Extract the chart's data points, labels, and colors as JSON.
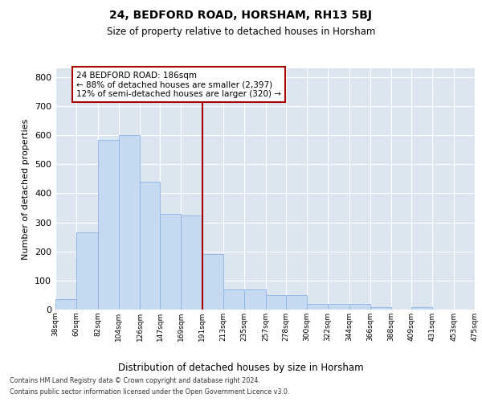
{
  "title1": "24, BEDFORD ROAD, HORSHAM, RH13 5BJ",
  "title2": "Size of property relative to detached houses in Horsham",
  "xlabel": "Distribution of detached houses by size in Horsham",
  "ylabel": "Number of detached properties",
  "footnote1": "Contains HM Land Registry data © Crown copyright and database right 2024.",
  "footnote2": "Contains public sector information licensed under the Open Government Licence v3.0.",
  "property_label": "24 BEDFORD ROAD: 186sqm",
  "annotation_line1": "← 88% of detached houses are smaller (2,397)",
  "annotation_line2": "12% of semi-detached houses are larger (320) →",
  "bar_color": "#C5D9F1",
  "bar_edge_color": "#8EB4E3",
  "highlight_color": "#AA0000",
  "background_color": "#DCE6F1",
  "bins": [
    38,
    60,
    82,
    104,
    126,
    147,
    169,
    191,
    213,
    235,
    257,
    278,
    300,
    322,
    344,
    366,
    388,
    409,
    431,
    453,
    475
  ],
  "values": [
    35,
    265,
    585,
    600,
    440,
    330,
    325,
    190,
    70,
    70,
    50,
    50,
    20,
    20,
    20,
    8,
    0,
    8,
    0,
    0,
    8
  ],
  "ylim": [
    0,
    830
  ],
  "yticks": [
    0,
    100,
    200,
    300,
    400,
    500,
    600,
    700,
    800
  ],
  "vline_x": 191,
  "fig_width": 6.0,
  "fig_height": 5.0,
  "dpi": 100
}
